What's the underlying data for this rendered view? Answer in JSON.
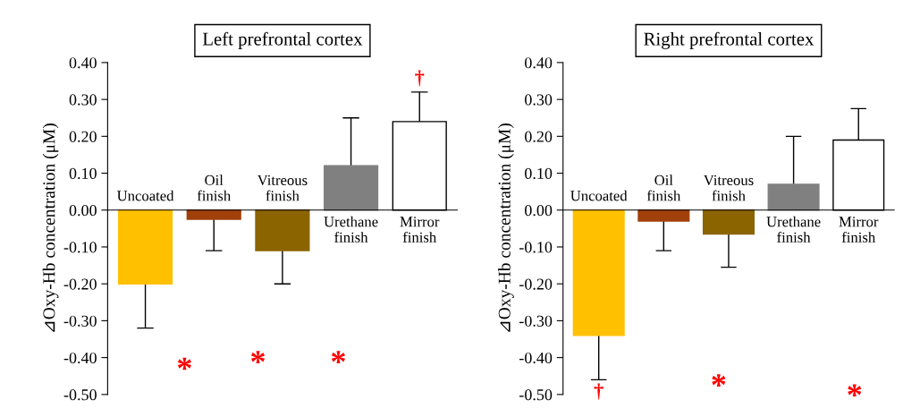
{
  "chart_data": [
    {
      "type": "bar",
      "title": "Left prefrontal cortex",
      "ylabel": "⊿Oxy-Hb concentration (μM)",
      "categories": [
        "Uncoated",
        "Oil\nfinish",
        "Vitreous\nfinish",
        "Urethane\nfinish",
        "Mirror\nfinish"
      ],
      "values": [
        -0.2,
        -0.025,
        -0.11,
        0.12,
        0.24
      ],
      "colors": [
        "#ffc000",
        "#a0400a",
        "#8b6400",
        "#808080",
        "#ffffff"
      ],
      "errors": [
        [
          -0.32,
          -0.2
        ],
        [
          -0.11,
          -0.025
        ],
        [
          -0.2,
          -0.11
        ],
        [
          0.12,
          0.25
        ],
        [
          0.24,
          0.32
        ]
      ],
      "ylim": [
        -0.5,
        0.4
      ],
      "yticks": [
        {
          "value": -0.5,
          "label": "-0.50"
        },
        {
          "value": -0.4,
          "label": "-0.40"
        },
        {
          "value": -0.3,
          "label": "-0.30"
        },
        {
          "value": -0.2,
          "label": "-0.20"
        },
        {
          "value": -0.1,
          "label": "-0.10"
        },
        {
          "value": 0,
          "label": "0.00"
        },
        {
          "value": 0.1,
          "label": "0.10"
        },
        {
          "value": 0.2,
          "label": "0.20"
        },
        {
          "value": 0.3,
          "label": "0.30"
        },
        {
          "value": 0.4,
          "label": "0.40"
        }
      ],
      "annotations": [
        "*",
        "*",
        "*",
        {
          "text": "†",
          "x": "Mirror\nfinish",
          "y": 0.32
        }
      ]
    },
    {
      "type": "bar",
      "title": "Right prefrontal cortex",
      "ylabel": "⊿Oxy-Hb concentration (μM)",
      "categories": [
        "Uncoated",
        "Oil\nfinish",
        "Vitreous\nfinish",
        "Urethane\nfinish",
        "Mirror\nfinish"
      ],
      "values": [
        -0.34,
        -0.03,
        -0.065,
        0.07,
        0.19
      ],
      "colors": [
        "#ffc000",
        "#a0400a",
        "#8b6400",
        "#808080",
        "#ffffff"
      ],
      "errors": [
        [
          -0.46,
          -0.34
        ],
        [
          -0.11,
          -0.03
        ],
        [
          -0.155,
          -0.065
        ],
        [
          0.07,
          0.2
        ],
        [
          0.19,
          0.275
        ]
      ],
      "ylim": [
        -0.5,
        0.4
      ],
      "yticks": [
        {
          "value": -0.5,
          "label": "-0.50"
        },
        {
          "value": -0.4,
          "label": "-0.40"
        },
        {
          "value": -0.3,
          "label": "-0.30"
        },
        {
          "value": -0.2,
          "label": "-0.20"
        },
        {
          "value": -0.1,
          "label": "-0.10"
        },
        {
          "value": 0,
          "label": "0.00"
        },
        {
          "value": 0.1,
          "label": "0.10"
        },
        {
          "value": 0.2,
          "label": "0.20"
        },
        {
          "value": 0.3,
          "label": "0.30"
        },
        {
          "value": 0.4,
          "label": "0.40"
        }
      ],
      "annotations": [
        {
          "text": "†",
          "x": "Uncoated",
          "y": -0.46
        },
        "*",
        "*"
      ]
    }
  ]
}
